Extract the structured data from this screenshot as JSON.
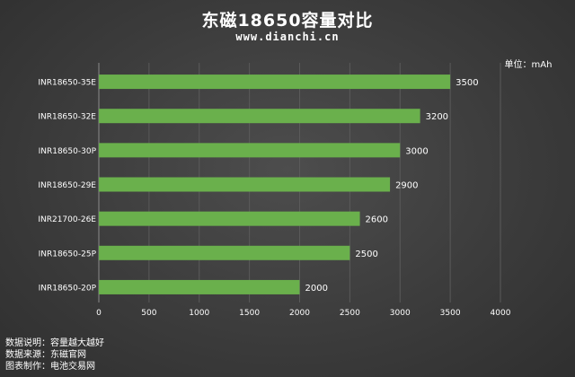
{
  "title": "东磁18650容量对比",
  "subtitle": "www.dianchi.cn",
  "chart_data": {
    "type": "bar",
    "orientation": "horizontal",
    "unit_label": "单位：mAh",
    "categories": [
      "INR18650-35E",
      "INR18650-32E",
      "INR18650-30P",
      "INR18650-29E",
      "INR21700-26E",
      "INR18650-25P",
      "INR18650-20P"
    ],
    "values": [
      3500,
      3200,
      3000,
      2900,
      2600,
      2500,
      2000
    ],
    "xlim": [
      0,
      4000
    ],
    "xticks": [
      0,
      500,
      1000,
      1500,
      2000,
      2500,
      3000,
      3500,
      4000
    ],
    "bar_color": "#6ab04c",
    "grid": true,
    "data_labels": true
  },
  "footer": {
    "line1": "数据说明：容量越大越好",
    "line2": "数据来源：东磁官网",
    "line3": "图表制作：电池交易网"
  }
}
